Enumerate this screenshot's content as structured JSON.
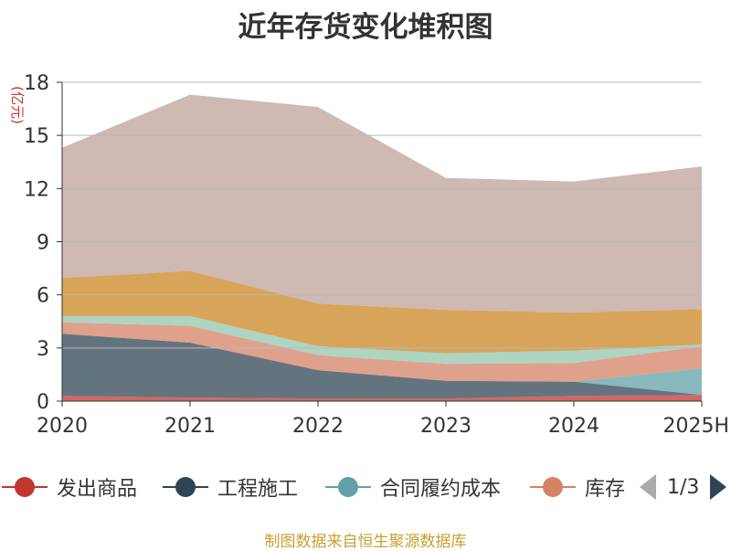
{
  "chart_data": {
    "type": "area",
    "title": "近年存货变化堆积图",
    "ylabel": "(亿元)",
    "xlabel": "",
    "stacked": true,
    "categories": [
      "2020",
      "2021",
      "2022",
      "2023",
      "2024",
      "2025H"
    ],
    "ylim": [
      0,
      18
    ],
    "yticks": [
      0,
      3,
      6,
      9,
      12,
      15,
      18
    ],
    "grid": true,
    "series": [
      {
        "name": "发出商品",
        "color": "#c23531",
        "values": [
          0.3,
          0.2,
          0.15,
          0.15,
          0.3,
          0.35
        ]
      },
      {
        "name": "工程施工",
        "color": "#2f4554",
        "values": [
          3.5,
          3.1,
          1.6,
          1.0,
          0.8,
          0.0
        ]
      },
      {
        "name": "合同履约成本",
        "color": "#61a0a8",
        "values": [
          0.0,
          0.0,
          0.0,
          0.0,
          0.0,
          1.5
        ]
      },
      {
        "name": "库存",
        "color": "#d48265",
        "values": [
          0.65,
          0.95,
          0.85,
          0.95,
          1.05,
          1.25
        ]
      },
      {
        "name": "",
        "color": "#91c7ae",
        "values": [
          0.35,
          0.55,
          0.5,
          0.6,
          0.7,
          0.1
        ]
      },
      {
        "name": "",
        "color": "#ca8622",
        "values": [
          2.15,
          2.55,
          2.4,
          2.45,
          2.15,
          2.0
        ]
      },
      {
        "name": "",
        "color": "#bda29a",
        "values": [
          7.35,
          9.95,
          11.1,
          7.45,
          7.4,
          8.05
        ]
      }
    ],
    "legend": {
      "position": "bottom",
      "page": "1/3"
    }
  },
  "source": "制图数据来自恒生聚源数据库"
}
